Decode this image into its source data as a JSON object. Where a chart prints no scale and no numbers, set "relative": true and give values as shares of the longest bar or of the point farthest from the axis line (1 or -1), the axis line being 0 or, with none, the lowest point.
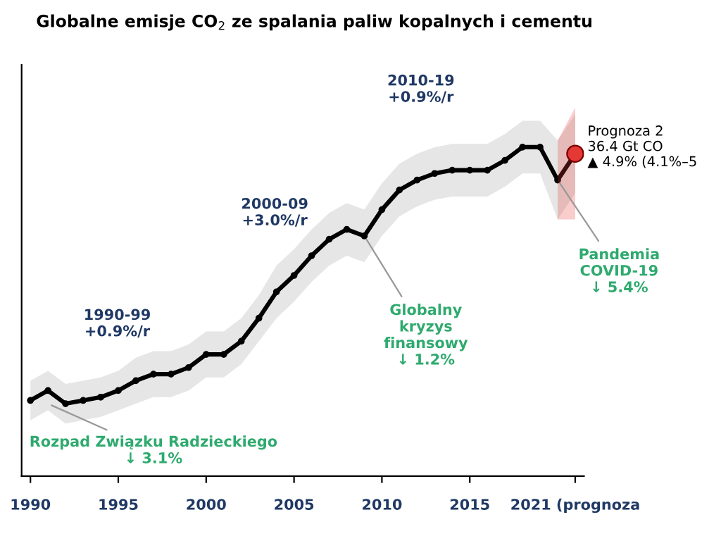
{
  "chart_data": {
    "type": "line",
    "title": "Globalne emisje CO$_{2}$ ze spalania paliw kopalnych i cementu",
    "relative": true,
    "x": [
      1990,
      1991,
      1992,
      1993,
      1994,
      1995,
      1996,
      1997,
      1998,
      1999,
      2000,
      2001,
      2002,
      2003,
      2004,
      2005,
      2006,
      2007,
      2008,
      2009,
      2010,
      2011,
      2012,
      2013,
      2014,
      2015,
      2016,
      2017,
      2018,
      2019,
      2020,
      2021
    ],
    "series": [
      {
        "color": "#000000",
        "marker": "circle",
        "values": [
          0.23,
          0.26,
          0.22,
          0.23,
          0.24,
          0.26,
          0.29,
          0.31,
          0.31,
          0.33,
          0.37,
          0.37,
          0.41,
          0.48,
          0.56,
          0.61,
          0.67,
          0.72,
          0.75,
          0.73,
          0.81,
          0.87,
          0.9,
          0.92,
          0.93,
          0.93,
          0.93,
          0.96,
          1.0,
          1.0,
          0.9,
          0.98
        ],
        "lower": [
          0.17,
          0.2,
          0.16,
          0.17,
          0.18,
          0.2,
          0.22,
          0.24,
          0.24,
          0.26,
          0.3,
          0.3,
          0.34,
          0.41,
          0.48,
          0.53,
          0.59,
          0.64,
          0.67,
          0.65,
          0.73,
          0.79,
          0.82,
          0.84,
          0.85,
          0.85,
          0.85,
          0.88,
          0.92,
          0.92,
          0.78,
          0.86
        ],
        "upper": [
          0.29,
          0.32,
          0.28,
          0.29,
          0.3,
          0.32,
          0.36,
          0.38,
          0.38,
          0.4,
          0.44,
          0.44,
          0.48,
          0.55,
          0.64,
          0.69,
          0.75,
          0.8,
          0.83,
          0.81,
          0.89,
          0.95,
          0.98,
          1.0,
          1.01,
          1.01,
          1.01,
          1.04,
          1.08,
          1.08,
          1.02,
          1.1
        ]
      },
      {
        "type": "scatter",
        "color": "#e53935",
        "x": [
          2020,
          2021
        ],
        "values": [
          null,
          0.98
        ],
        "lower": [
          0.78,
          0.78
        ],
        "upper": [
          1.02,
          1.12
        ]
      }
    ],
    "xlim": [
      1989.5,
      2021.5
    ],
    "xticks": [
      1990,
      1995,
      2000,
      2005,
      2010,
      2015,
      {
        "value": 2021,
        "label": "2021 (prognoza"
      }
    ],
    "annotations": [
      "1990-99\n+0.9%/r",
      "2000-09\n+3.0%/r",
      "2010-19\n+0.9%/r",
      {
        "text": "Rozpad Związku Radzieckiego\n↓ 3.1%",
        "x": 1991,
        "y": 0.22
      },
      {
        "text": "Globalny\nkryzys\nfinansowy\n↓ 1.2%",
        "x": 2009,
        "y": 0.73
      },
      {
        "text": "Pandemia\nCOVID-19\n↓ 5.4%",
        "x": 2020,
        "y": 0.9
      },
      {
        "text": "Prognoza 2\n36.4 Gt CO\n▲ 4.9% (4.1%–5",
        "x": 2021,
        "y": 0.98
      }
    ]
  }
}
